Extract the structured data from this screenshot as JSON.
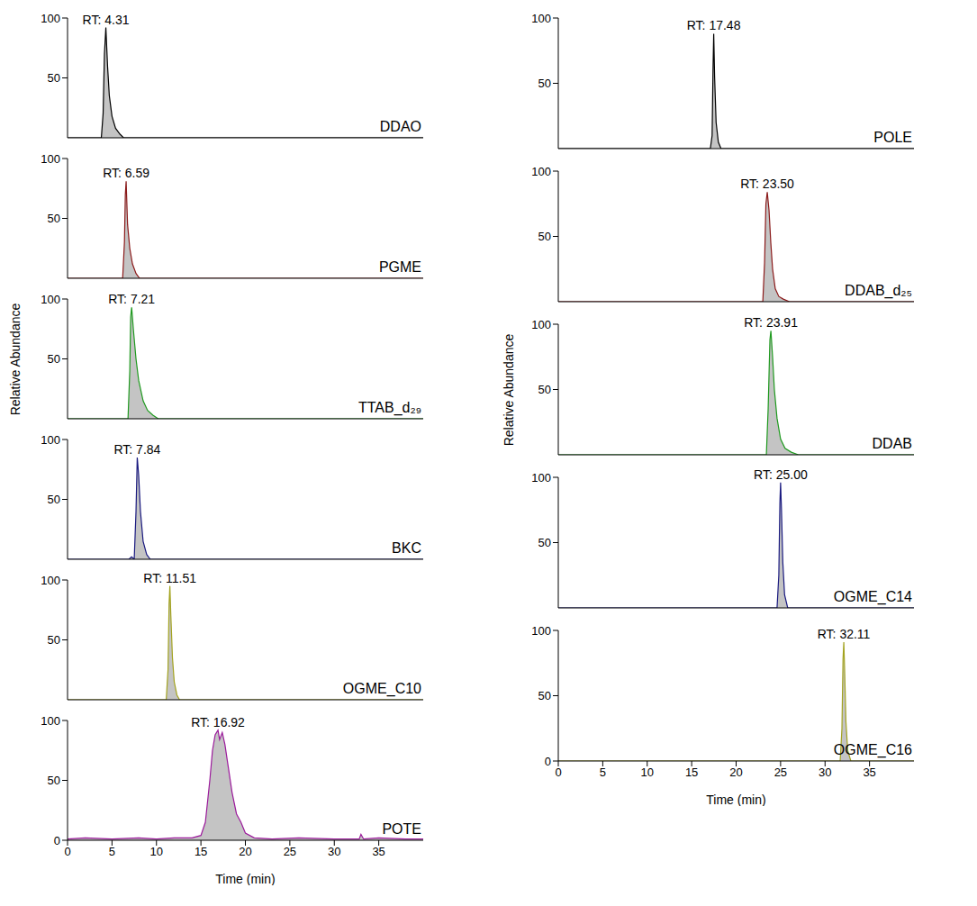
{
  "chart_data": [
    {
      "type": "area",
      "title": "DDAO",
      "annotation": "RT: 4.31",
      "color": "#000000",
      "tick_labels": "y",
      "x": [
        0,
        3.8,
        4.0,
        4.15,
        4.31,
        4.5,
        4.7,
        5.0,
        5.4,
        5.9,
        6.3,
        40
      ],
      "values": [
        0,
        0,
        20,
        70,
        92,
        60,
        35,
        18,
        8,
        3,
        0,
        0
      ],
      "xlim": [
        0,
        40
      ],
      "xticks": [
        0,
        5,
        10,
        15,
        20,
        25,
        30,
        35
      ],
      "ylim": [
        0,
        100
      ],
      "yticks": [
        0,
        50,
        100
      ]
    },
    {
      "type": "area",
      "title": "PGME",
      "annotation": "RT: 6.59",
      "color": "#8b1a1a",
      "tick_labels": "y",
      "x": [
        0,
        6.2,
        6.4,
        6.5,
        6.59,
        6.75,
        7.0,
        7.3,
        7.7,
        8.1,
        40
      ],
      "values": [
        0,
        0,
        30,
        70,
        81,
        45,
        25,
        12,
        4,
        0,
        0
      ],
      "xlim": [
        0,
        40
      ],
      "xticks": [
        0,
        5,
        10,
        15,
        20,
        25,
        30,
        35
      ],
      "ylim": [
        0,
        100
      ],
      "yticks": [
        0,
        50,
        100
      ]
    },
    {
      "type": "area",
      "title": "TTAB_d₂₉",
      "annotation": "RT: 7.21",
      "color": "#1f9a1f",
      "tick_labels": "y",
      "y_label": "Relative Abundance",
      "x": [
        0,
        6.8,
        7.0,
        7.1,
        7.21,
        7.4,
        7.7,
        8.0,
        8.5,
        9.0,
        9.6,
        10.2,
        40
      ],
      "values": [
        0,
        0,
        40,
        85,
        93,
        75,
        50,
        32,
        15,
        7,
        3,
        0,
        0
      ],
      "xlim": [
        0,
        40
      ],
      "xticks": [
        0,
        5,
        10,
        15,
        20,
        25,
        30,
        35
      ],
      "ylim": [
        0,
        100
      ],
      "yticks": [
        0,
        50,
        100
      ]
    },
    {
      "type": "area",
      "title": "BKC",
      "annotation": "RT: 7.84",
      "color": "#1a1a80",
      "tick_labels": "y",
      "x": [
        0,
        6.9,
        7.2,
        7.5,
        7.7,
        7.84,
        8.0,
        8.2,
        8.5,
        8.9,
        9.3,
        40
      ],
      "values": [
        0,
        0,
        2,
        0,
        40,
        85,
        70,
        40,
        15,
        4,
        0,
        0
      ],
      "xlim": [
        0,
        40
      ],
      "xticks": [
        0,
        5,
        10,
        15,
        20,
        25,
        30,
        35
      ],
      "ylim": [
        0,
        100
      ],
      "yticks": [
        0,
        50,
        100
      ]
    },
    {
      "type": "area",
      "title": "OGME_C10",
      "annotation": "RT: 11.51",
      "color": "#a3a31f",
      "tick_labels": "y",
      "x": [
        0,
        11.1,
        11.3,
        11.42,
        11.51,
        11.62,
        11.8,
        12.0,
        12.3,
        12.6,
        40
      ],
      "values": [
        0,
        0,
        25,
        80,
        95,
        70,
        35,
        15,
        4,
        0,
        0
      ],
      "xlim": [
        0,
        40
      ],
      "xticks": [
        0,
        5,
        10,
        15,
        20,
        25,
        30,
        35
      ],
      "ylim": [
        0,
        100
      ],
      "yticks": [
        0,
        50,
        100
      ]
    },
    {
      "type": "area",
      "title": "POTE",
      "annotation": "RT: 16.92",
      "color": "#9b1a9b",
      "x_label": "Time (min)",
      "x": [
        0,
        2,
        5,
        8,
        10,
        12,
        14,
        15,
        15.5,
        16,
        16.3,
        16.6,
        16.92,
        17.1,
        17.4,
        17.7,
        18,
        18.5,
        19,
        19.5,
        20,
        21,
        23,
        26,
        30,
        32.8,
        33,
        33.3,
        35,
        38,
        40
      ],
      "values": [
        1,
        2,
        1,
        2,
        1,
        2,
        2,
        4,
        15,
        50,
        75,
        88,
        92,
        84,
        90,
        80,
        65,
        40,
        22,
        15,
        6,
        2,
        1,
        2,
        1,
        1,
        5,
        1,
        2,
        1,
        1
      ],
      "xlim": [
        0,
        40
      ],
      "xticks": [
        0,
        5,
        10,
        15,
        20,
        25,
        30,
        35
      ],
      "ylim": [
        0,
        100
      ],
      "yticks": [
        0,
        50,
        100
      ]
    },
    {
      "type": "area",
      "title": "POLE",
      "annotation": "RT: 17.48",
      "color": "#000000",
      "tick_labels": "y",
      "x": [
        0,
        17.1,
        17.3,
        17.4,
        17.48,
        17.58,
        17.75,
        18.0,
        18.3,
        40
      ],
      "values": [
        0,
        0,
        10,
        60,
        88,
        55,
        20,
        5,
        0,
        0
      ],
      "xlim": [
        0,
        40
      ],
      "xticks": [
        0,
        5,
        10,
        15,
        20,
        25,
        30,
        35
      ],
      "ylim": [
        0,
        100
      ],
      "yticks": [
        0,
        50,
        100
      ]
    },
    {
      "type": "area",
      "title": "DDAB_d₂₅",
      "annotation": "RT: 23.50",
      "color": "#8b1a1a",
      "tick_labels": "y",
      "x": [
        0,
        23.0,
        23.2,
        23.35,
        23.5,
        23.7,
        23.9,
        24.1,
        24.4,
        24.8,
        25.3,
        26,
        40
      ],
      "values": [
        0,
        0,
        30,
        75,
        84,
        70,
        45,
        25,
        10,
        4,
        2,
        0,
        0
      ],
      "xlim": [
        0,
        40
      ],
      "xticks": [
        0,
        5,
        10,
        15,
        20,
        25,
        30,
        35
      ],
      "ylim": [
        0,
        100
      ],
      "yticks": [
        0,
        50,
        100
      ]
    },
    {
      "type": "area",
      "title": "DDAB",
      "annotation": "RT: 23.91",
      "color": "#1f9a1f",
      "tick_labels": "y",
      "y_label": "Relative Abundance",
      "x": [
        0,
        23.4,
        23.6,
        23.8,
        23.91,
        24.1,
        24.3,
        24.6,
        25,
        25.5,
        26.2,
        27,
        40
      ],
      "values": [
        0,
        0,
        35,
        88,
        95,
        75,
        50,
        28,
        12,
        5,
        2,
        0,
        0
      ],
      "xlim": [
        0,
        40
      ],
      "xticks": [
        0,
        5,
        10,
        15,
        20,
        25,
        30,
        35
      ],
      "ylim": [
        0,
        100
      ],
      "yticks": [
        0,
        50,
        100
      ]
    },
    {
      "type": "area",
      "title": "OGME_C14",
      "annotation": "RT: 25.00",
      "color": "#1a1a80",
      "tick_labels": "y",
      "x": [
        0,
        24.6,
        24.8,
        24.92,
        25.0,
        25.1,
        25.25,
        25.45,
        25.8,
        40
      ],
      "values": [
        0,
        0,
        25,
        80,
        96,
        75,
        35,
        10,
        0,
        0
      ],
      "xlim": [
        0,
        40
      ],
      "xticks": [
        0,
        5,
        10,
        15,
        20,
        25,
        30,
        35
      ],
      "ylim": [
        0,
        100
      ],
      "yticks": [
        0,
        50,
        100
      ]
    },
    {
      "type": "area",
      "title": "OGME_C16",
      "annotation": "RT: 32.11",
      "color": "#a3a31f",
      "x_label": "Time (min)",
      "x": [
        0,
        31.7,
        31.9,
        32.02,
        32.11,
        32.2,
        32.35,
        32.55,
        32.9,
        40
      ],
      "values": [
        0,
        0,
        25,
        78,
        91,
        70,
        30,
        8,
        0,
        0
      ],
      "xlim": [
        0,
        40
      ],
      "xticks": [
        0,
        5,
        10,
        15,
        20,
        25,
        30,
        35
      ],
      "ylim": [
        0,
        100
      ],
      "yticks": [
        0,
        50,
        100
      ]
    }
  ]
}
